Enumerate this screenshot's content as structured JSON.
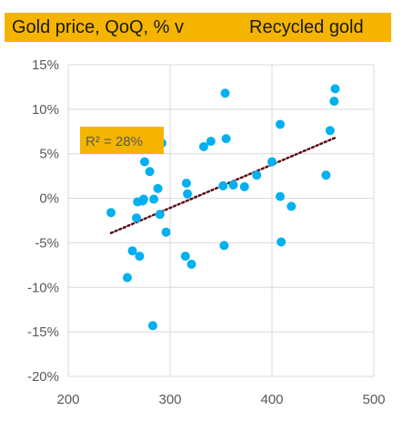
{
  "header": {
    "left_title": "Gold price, QoQ, % v",
    "right_title": "Recycled gold"
  },
  "colors": {
    "band": "#F5B400",
    "point": "#00B0F0",
    "trend": "#5B0F1A",
    "grid": "#D9D9D9",
    "axis_text": "#595959"
  },
  "chart_data": {
    "type": "scatter",
    "xlim": [
      200,
      500
    ],
    "ylim": [
      -20,
      15
    ],
    "x_ticks": [
      200,
      300,
      400,
      500
    ],
    "y_ticks": [
      15,
      10,
      5,
      0,
      -5,
      -10,
      -15,
      -20
    ],
    "y_tick_labels": [
      "15%",
      "10%",
      "5%",
      "0%",
      "-5%",
      "-10%",
      "-15%",
      "-20%"
    ],
    "grid": true,
    "annotation": "R² = 28%",
    "trendline": {
      "x": [
        242,
        462
      ],
      "y": [
        -3.9,
        6.8
      ]
    },
    "points": [
      {
        "x": 242,
        "y": -1.6
      },
      {
        "x": 258,
        "y": -8.9
      },
      {
        "x": 263,
        "y": -5.9
      },
      {
        "x": 267,
        "y": -2.2
      },
      {
        "x": 268,
        "y": -0.4
      },
      {
        "x": 270,
        "y": -6.5
      },
      {
        "x": 273,
        "y": -0.3
      },
      {
        "x": 274,
        "y": -0.1
      },
      {
        "x": 275,
        "y": 4.1
      },
      {
        "x": 280,
        "y": 3.0
      },
      {
        "x": 283,
        "y": -14.3
      },
      {
        "x": 284,
        "y": -0.1
      },
      {
        "x": 288,
        "y": 1.1
      },
      {
        "x": 290,
        "y": -1.8
      },
      {
        "x": 292,
        "y": 6.2
      },
      {
        "x": 296,
        "y": -3.8
      },
      {
        "x": 315,
        "y": -6.5
      },
      {
        "x": 316,
        "y": 1.7
      },
      {
        "x": 317,
        "y": 0.5
      },
      {
        "x": 321,
        "y": -7.4
      },
      {
        "x": 333,
        "y": 5.8
      },
      {
        "x": 340,
        "y": 6.4
      },
      {
        "x": 352,
        "y": 1.4
      },
      {
        "x": 353,
        "y": -5.3
      },
      {
        "x": 354,
        "y": 11.8
      },
      {
        "x": 355,
        "y": 6.7
      },
      {
        "x": 362,
        "y": 1.5
      },
      {
        "x": 373,
        "y": 1.3
      },
      {
        "x": 385,
        "y": 2.6
      },
      {
        "x": 400,
        "y": 4.1
      },
      {
        "x": 408,
        "y": 8.3
      },
      {
        "x": 408,
        "y": 0.2
      },
      {
        "x": 409,
        "y": -4.9
      },
      {
        "x": 419,
        "y": -0.9
      },
      {
        "x": 453,
        "y": 2.6
      },
      {
        "x": 457,
        "y": 7.6
      },
      {
        "x": 461,
        "y": 10.9
      },
      {
        "x": 462,
        "y": 12.3
      }
    ]
  }
}
